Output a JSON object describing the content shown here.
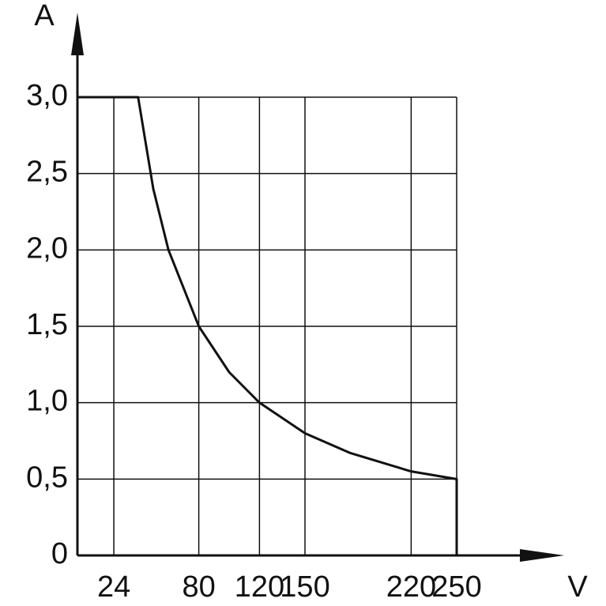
{
  "chart_data": {
    "type": "line",
    "y_label": "A",
    "x_label": "V",
    "x": [
      0,
      40,
      50,
      60,
      80,
      100,
      120,
      150,
      180,
      220,
      250,
      250
    ],
    "series": [
      {
        "color": "#111111",
        "values": [
          3.0,
          3.0,
          2.4,
          2.0,
          1.5,
          1.2,
          1.0,
          0.8,
          0.67,
          0.55,
          0.5,
          0
        ]
      }
    ],
    "xlim": [
      0,
      250
    ],
    "ylim": [
      0,
      3.0
    ],
    "xticks": [
      24,
      80,
      120,
      150,
      220,
      250
    ],
    "yticks": [
      0,
      {
        "value": 0.5,
        "label": "0,5"
      },
      {
        "value": 1.0,
        "label": "1,0"
      },
      {
        "value": 1.5,
        "label": "1,5"
      },
      {
        "value": 2.0,
        "label": "2,0"
      },
      {
        "value": 2.5,
        "label": "2,5"
      },
      {
        "value": 3.0,
        "label": "3,0"
      }
    ],
    "grid": true
  }
}
